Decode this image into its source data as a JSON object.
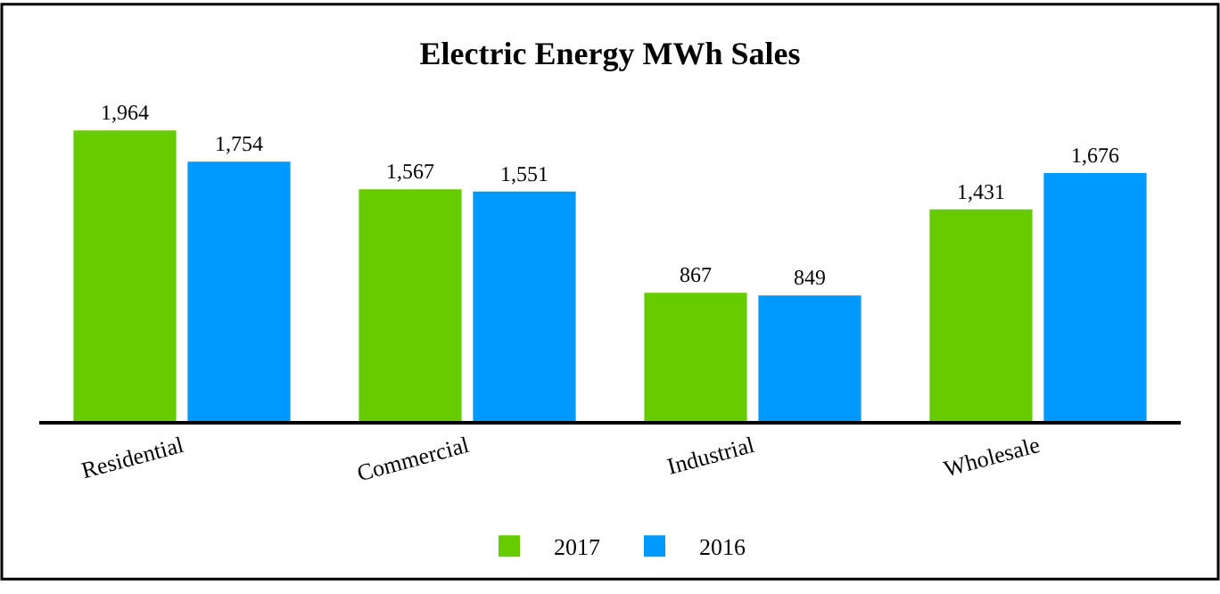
{
  "chart_data": {
    "type": "bar",
    "title": "Electric Energy MWh Sales",
    "categories": [
      "Residential",
      "Commercial",
      "Industrial",
      "Wholesale"
    ],
    "series": [
      {
        "name": "2017",
        "color": "#66cc00",
        "values": [
          1964,
          1567,
          867,
          1431
        ],
        "value_labels": [
          "1,964",
          "1,567",
          "867",
          "1,431"
        ]
      },
      {
        "name": "2016",
        "color": "#0099ff",
        "values": [
          1754,
          1551,
          849,
          1676
        ],
        "value_labels": [
          "1,754",
          "1,551",
          "849",
          "1,676"
        ]
      }
    ],
    "legend": "bottom"
  }
}
